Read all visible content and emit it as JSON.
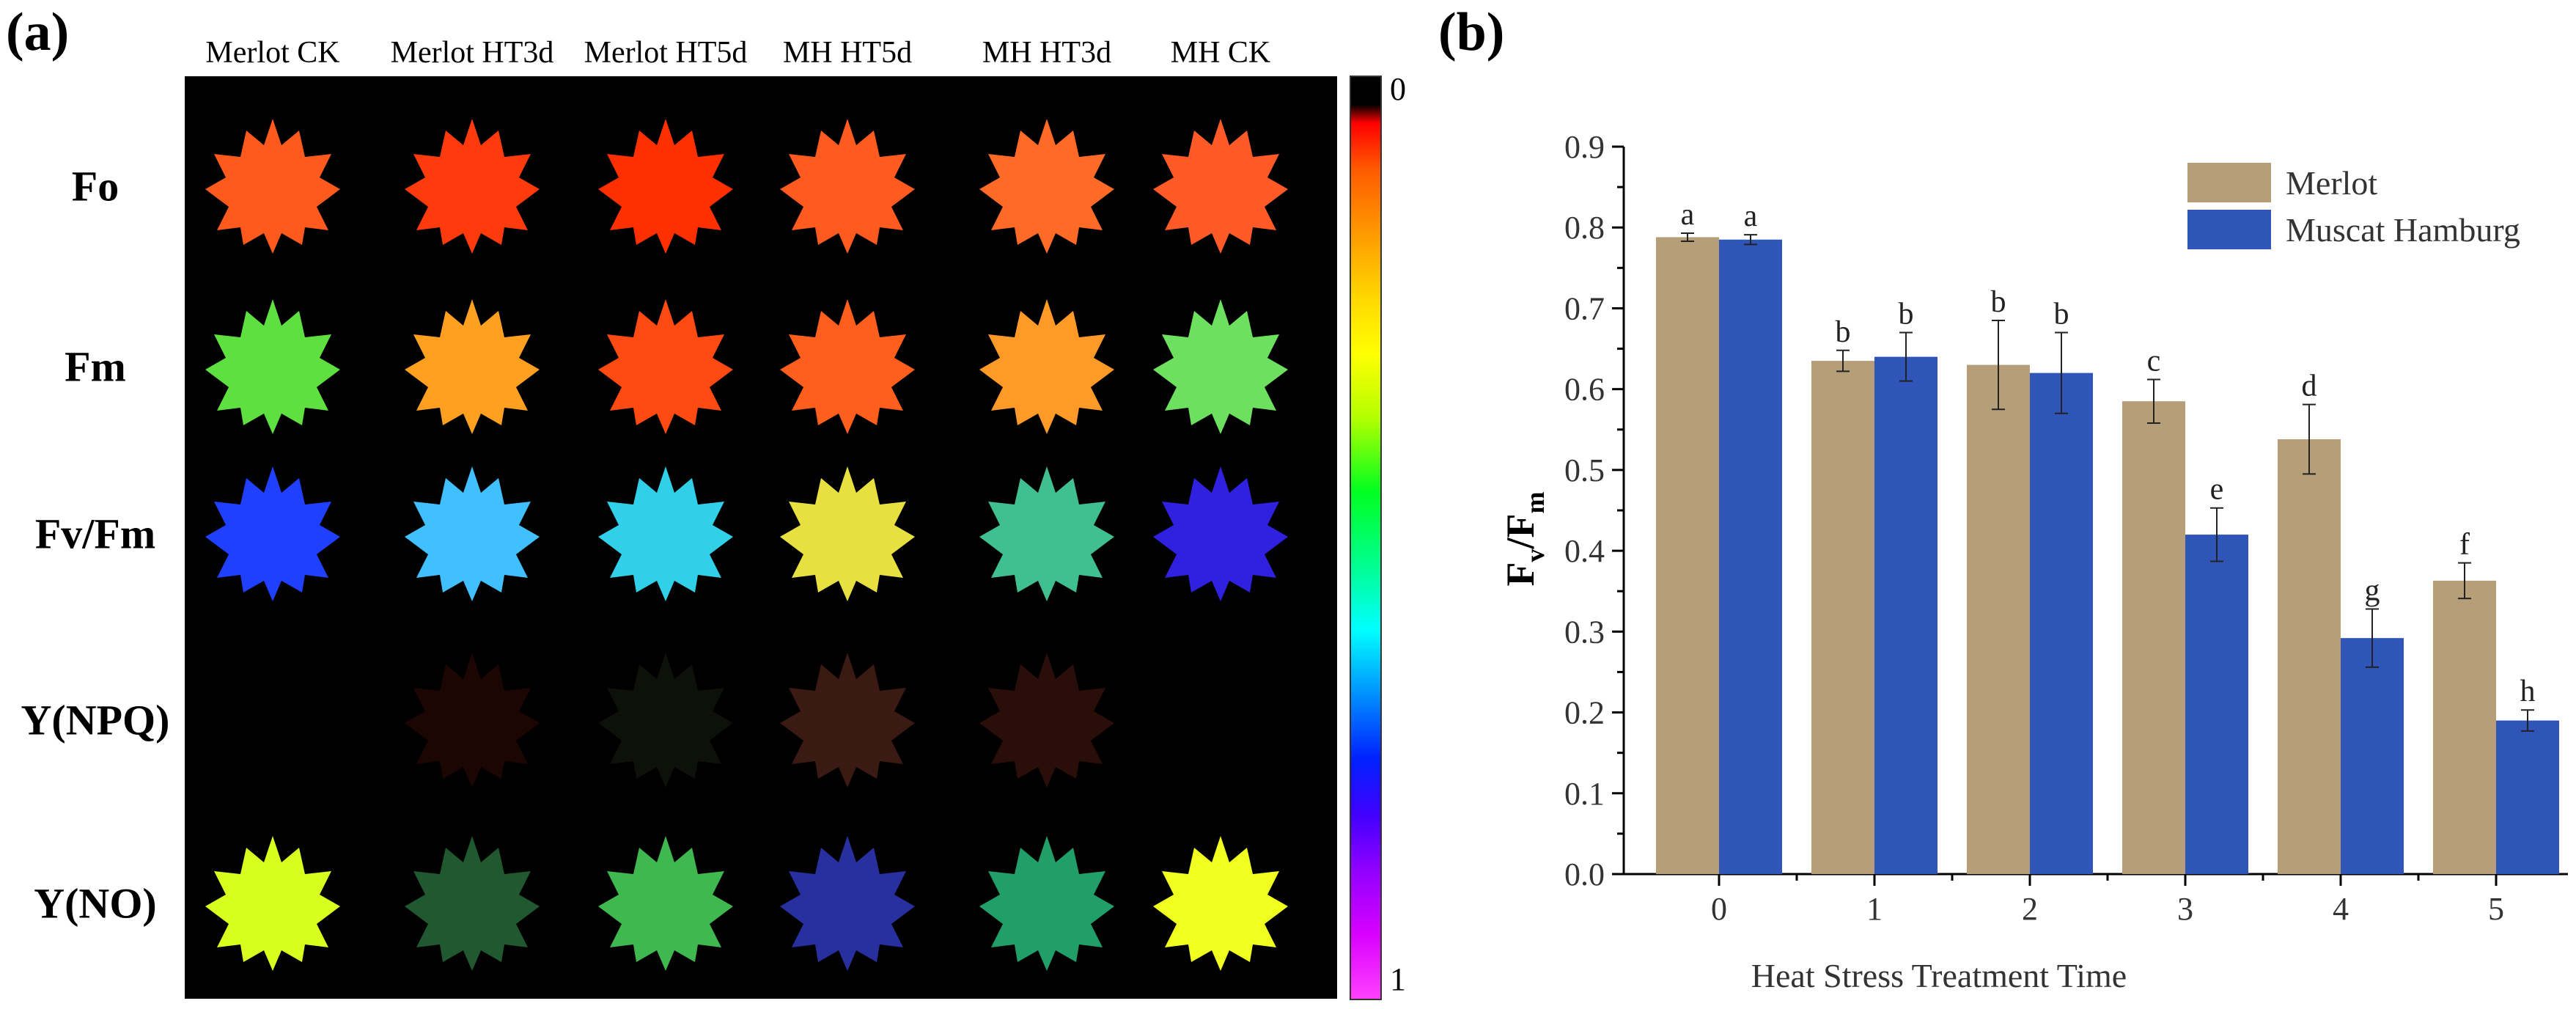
{
  "panel_a": {
    "label": "(a)",
    "columns": [
      "Merlot CK",
      "Merlot HT3d",
      "Merlot HT5d",
      "MH HT5d",
      "MH HT3d",
      "MH CK"
    ],
    "rows": [
      "Fo",
      "Fm",
      "Fv/Fm",
      "Y(NPQ)",
      "Y(NO)"
    ],
    "colorbar": {
      "top_label": "0",
      "bottom_label": "1"
    },
    "leaf_colors": [
      [
        "#ff5a1e",
        "#ff3a0c",
        "#ff3000",
        "#ff5a20",
        "#ff6a26",
        "#ff5a28"
      ],
      [
        "#5ee040",
        "#ffa020",
        "#ff4a12",
        "#ff5e1c",
        "#ff9a28",
        "#6ee060"
      ],
      [
        "#2040ff",
        "#40c0ff",
        "#30d0e8",
        "#e8e040",
        "#40c090",
        "#3020e0"
      ],
      [
        "#000000",
        "#1c0604",
        "#0e100a",
        "#3a1a12",
        "#2a0e0a",
        "#000000"
      ],
      [
        "#d8ff20",
        "#205830",
        "#40b850",
        "#2830a0",
        "#20a068",
        "#f0ff20"
      ]
    ]
  },
  "chart_data": {
    "type": "bar",
    "panel_label": "(b)",
    "title": "",
    "xlabel": "Heat Stress Treatment Time",
    "ylabel_main": "F",
    "ylabel_sub1": "v",
    "ylabel_slash": "/F",
    "ylabel_sub2": "m",
    "categories": [
      "0",
      "1",
      "2",
      "3",
      "4",
      "5"
    ],
    "ylim": [
      0.0,
      0.9
    ],
    "yticks": [
      "0.0",
      "0.1",
      "0.2",
      "0.3",
      "0.4",
      "0.5",
      "0.6",
      "0.7",
      "0.8",
      "0.9"
    ],
    "series": [
      {
        "name": "Merlot",
        "color": "#b59e78",
        "values": [
          0.788,
          0.635,
          0.63,
          0.585,
          0.538,
          0.363
        ],
        "errors": [
          0.005,
          0.013,
          0.055,
          0.027,
          0.043,
          0.022
        ],
        "letters": [
          "a",
          "b",
          "b",
          "c",
          "d",
          "f"
        ]
      },
      {
        "name": "Muscat Hamburg",
        "color": "#2f55b8",
        "values": [
          0.785,
          0.64,
          0.62,
          0.42,
          0.292,
          0.19
        ],
        "errors": [
          0.006,
          0.03,
          0.05,
          0.033,
          0.036,
          0.013
        ],
        "letters": [
          "a",
          "b",
          "b",
          "e",
          "g",
          "h"
        ]
      }
    ],
    "legend_position": "top-right"
  }
}
